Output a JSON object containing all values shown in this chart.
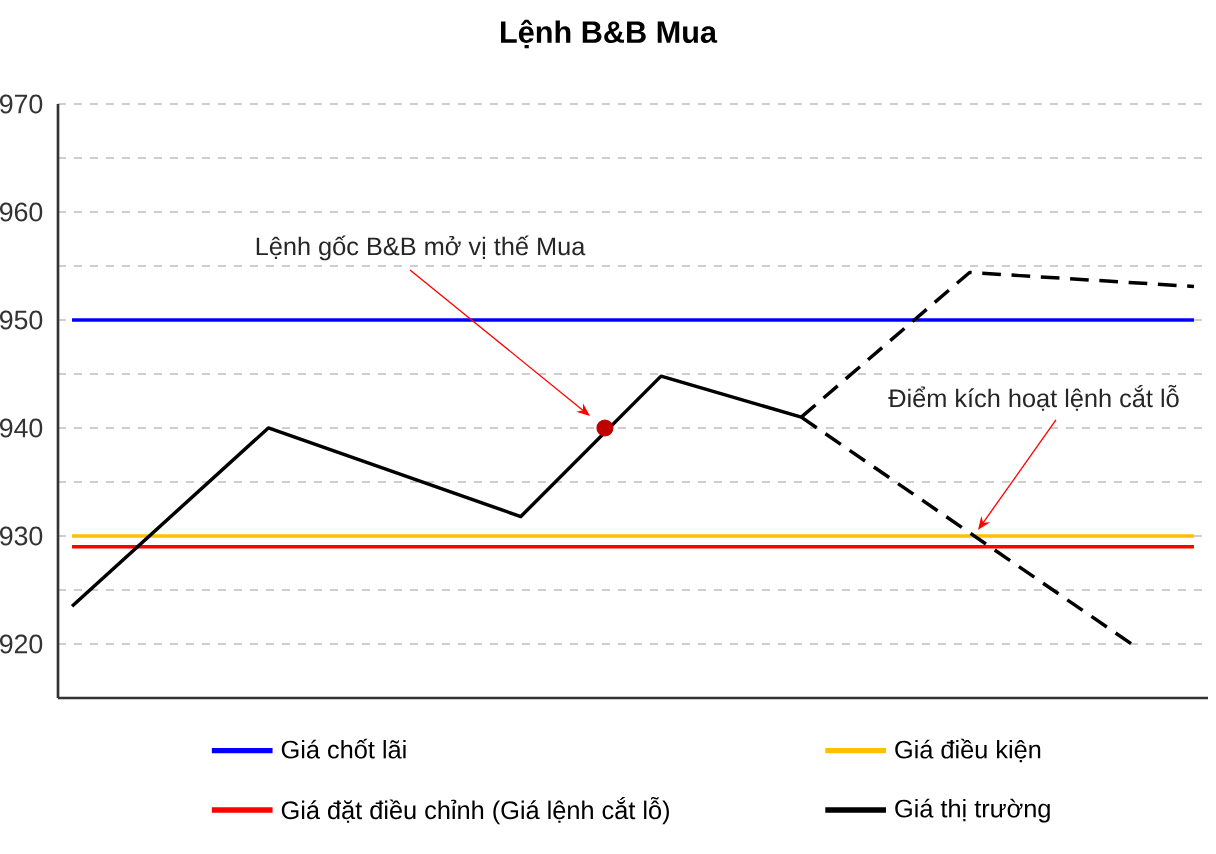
{
  "chart_data": {
    "type": "line",
    "title": "Lệnh B&B Mua",
    "categories": [
      null,
      null,
      null,
      null,
      null,
      null,
      null,
      null,
      null,
      null,
      null,
      null,
      null,
      null,
      null,
      null,
      null,
      null,
      null,
      null,
      null,
      null,
      null,
      null,
      null,
      null,
      null,
      null,
      null,
      null,
      null,
      null,
      null,
      null,
      null,
      null,
      null,
      null,
      null,
      null,
      null
    ],
    "ylim": [
      915,
      970
    ],
    "yticks": [
      920,
      {
        "value": 925,
        "label": null
      },
      930,
      {
        "value": 935,
        "label": null
      },
      940,
      {
        "value": 945,
        "label": null
      },
      950,
      {
        "value": 955,
        "label": null
      },
      960,
      {
        "value": 965,
        "label": null
      },
      970
    ],
    "tick_labels": "y",
    "grid": "y",
    "legend": "bottom",
    "series": [
      {
        "name": "Giá chốt lãi",
        "color": "#0000ff",
        "values": [
          950,
          950,
          950,
          950,
          950,
          950,
          950,
          950,
          950,
          950,
          950,
          950,
          950,
          950,
          950,
          950,
          950,
          950,
          950,
          950,
          950,
          950,
          950,
          950,
          950,
          950,
          950,
          950,
          950,
          950,
          950,
          950,
          950,
          950,
          950,
          950,
          950,
          950,
          950,
          950,
          950
        ]
      },
      {
        "name": "Giá điều kiện",
        "color": "#ffc000",
        "values": [
          930,
          930,
          930,
          930,
          930,
          930,
          930,
          930,
          930,
          930,
          930,
          930,
          930,
          930,
          930,
          930,
          930,
          930,
          930,
          930,
          930,
          930,
          930,
          930,
          930,
          930,
          930,
          930,
          930,
          930,
          930,
          930,
          930,
          930,
          930,
          930,
          930,
          930,
          930,
          930,
          930
        ]
      },
      {
        "name": "Giá đặt điều chỉnh (Giá lệnh cắt lỗ)",
        "color": "#ff0000",
        "values": [
          929,
          929,
          929,
          929,
          929,
          929,
          929,
          929,
          929,
          929,
          929,
          929,
          929,
          929,
          929,
          929,
          929,
          929,
          929,
          929,
          929,
          929,
          929,
          929,
          929,
          929,
          929,
          929,
          929,
          929,
          929,
          929,
          929,
          929,
          929,
          929,
          929,
          929,
          929,
          929,
          929
        ]
      },
      {
        "name": "Giá thị trường",
        "color": "#000000",
        "values": [
          923.5,
          null,
          null,
          null,
          null,
          null,
          null,
          940,
          null,
          null,
          null,
          null,
          null,
          null,
          null,
          null,
          931.8,
          null,
          null,
          null,
          null,
          944.8,
          null,
          null,
          null,
          null,
          941.0,
          null,
          null,
          null,
          null,
          null,
          null,
          null,
          null,
          null,
          null,
          null,
          null,
          null,
          null
        ]
      },
      {
        "color": "#000000",
        "line_style": "dashed",
        "values": [
          null,
          null,
          null,
          null,
          null,
          null,
          null,
          null,
          null,
          null,
          null,
          null,
          null,
          null,
          null,
          null,
          null,
          null,
          null,
          null,
          null,
          null,
          null,
          null,
          null,
          null,
          941.0,
          null,
          null,
          null,
          null,
          null,
          954.4,
          null,
          null,
          null,
          null,
          null,
          null,
          null,
          953.1
        ]
      },
      {
        "color": "#000000",
        "line_style": "dashed",
        "values": [
          null,
          null,
          null,
          null,
          null,
          null,
          null,
          null,
          null,
          null,
          null,
          null,
          null,
          null,
          null,
          null,
          null,
          null,
          null,
          null,
          null,
          null,
          null,
          null,
          null,
          null,
          941.0,
          null,
          null,
          null,
          null,
          null,
          null,
          null,
          null,
          null,
          null,
          null,
          919.6,
          null,
          null
        ]
      },
      {
        "type": "scatter",
        "color": "#c00000",
        "marker": "circle",
        "values": [
          null,
          null,
          null,
          null,
          null,
          null,
          null,
          null,
          null,
          null,
          null,
          null,
          null,
          null,
          null,
          null,
          null,
          null,
          null,
          940,
          null,
          null,
          null,
          null,
          null,
          null,
          null,
          null,
          null,
          null,
          null,
          null,
          null,
          null,
          null,
          null,
          null,
          null,
          null,
          null,
          null
        ]
      }
    ],
    "annotations": [
      "Lệnh gốc B&B mở vị thế Mua",
      "Điểm kích hoạt lệnh cắt lỗ"
    ]
  }
}
